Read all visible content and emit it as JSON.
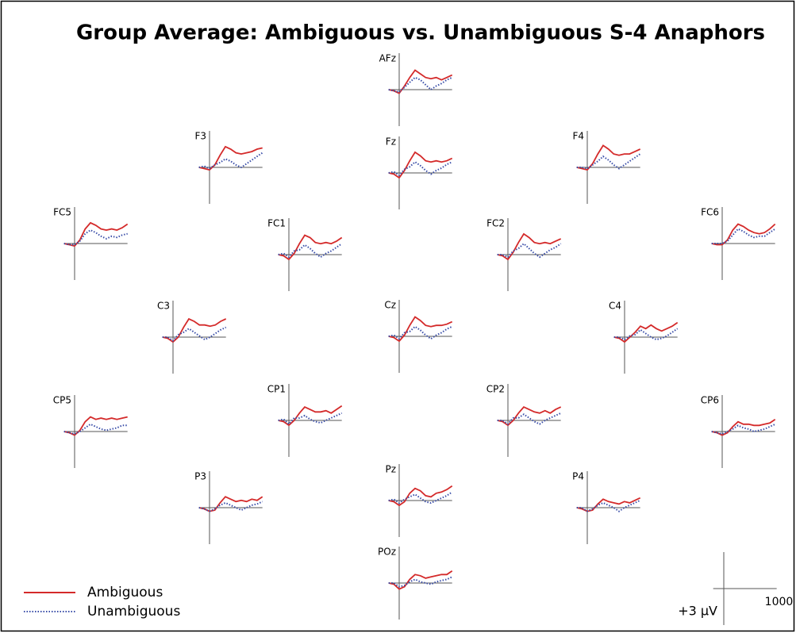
{
  "chart_data": {
    "type": "erp",
    "title": "Group Average: Ambiguous  vs. Unambiguous S-4 Anaphors",
    "x": [
      -200,
      -100,
      0,
      100,
      200,
      300,
      400,
      500,
      600,
      700,
      800,
      900,
      1000
    ],
    "xlim": [
      -200,
      1000
    ],
    "ylim": [
      -3,
      3
    ],
    "y_inverted": true,
    "series": [
      {
        "name": "Ambiguous",
        "color": "#d42a2a",
        "style": "solid"
      },
      {
        "name": "Unambiguous",
        "color": "#3a4ea8",
        "style": "dotted"
      }
    ],
    "panels": [
      {
        "label": "AFz",
        "series": [
          [
            0,
            0.1,
            0.3,
            -0.3,
            -1.0,
            -1.6,
            -1.3,
            -1.0,
            -0.9,
            -1.0,
            -0.8,
            -1.0,
            -1.2
          ],
          [
            0,
            0.1,
            0.2,
            -0.2,
            -0.6,
            -1.0,
            -0.8,
            -0.4,
            0.0,
            -0.3,
            -0.5,
            -0.8,
            -1.0
          ]
        ]
      },
      {
        "label": "F3",
        "series": [
          [
            0,
            0.1,
            0.2,
            -0.2,
            -1.0,
            -1.7,
            -1.5,
            -1.2,
            -1.1,
            -1.2,
            -1.3,
            -1.5,
            -1.6
          ],
          [
            0,
            -0.1,
            0.1,
            -0.2,
            -0.4,
            -0.7,
            -0.5,
            -0.2,
            0.0,
            -0.3,
            -0.6,
            -0.9,
            -1.2
          ]
        ]
      },
      {
        "label": "Fz",
        "series": [
          [
            0,
            0.1,
            0.4,
            -0.2,
            -1.0,
            -1.7,
            -1.4,
            -1.0,
            -0.9,
            -1.0,
            -0.9,
            -1.0,
            -1.2
          ],
          [
            0,
            -0.1,
            0.2,
            -0.3,
            -0.5,
            -0.9,
            -0.6,
            -0.2,
            0.1,
            -0.2,
            -0.4,
            -0.7,
            -0.9
          ]
        ]
      },
      {
        "label": "F4",
        "series": [
          [
            0,
            0.1,
            0.2,
            -0.3,
            -1.1,
            -1.8,
            -1.5,
            -1.1,
            -1.0,
            -1.1,
            -1.1,
            -1.3,
            -1.5
          ],
          [
            0,
            0.0,
            0.1,
            -0.2,
            -0.5,
            -0.9,
            -0.6,
            -0.2,
            0.1,
            -0.2,
            -0.5,
            -0.8,
            -1.1
          ]
        ]
      },
      {
        "label": "FC5",
        "series": [
          [
            0,
            0.1,
            0.2,
            -0.3,
            -1.2,
            -1.7,
            -1.5,
            -1.2,
            -1.1,
            -1.2,
            -1.1,
            -1.3,
            -1.6
          ],
          [
            0,
            0.1,
            0.1,
            -0.2,
            -0.8,
            -1.1,
            -0.9,
            -0.6,
            -0.4,
            -0.6,
            -0.5,
            -0.7,
            -0.8
          ]
        ]
      },
      {
        "label": "FC1",
        "series": [
          [
            0,
            0.1,
            0.4,
            -0.1,
            -0.9,
            -1.6,
            -1.4,
            -1.0,
            -0.9,
            -1.0,
            -0.9,
            -1.1,
            -1.4
          ],
          [
            0,
            -0.1,
            0.2,
            -0.3,
            -0.4,
            -0.8,
            -0.5,
            -0.1,
            0.2,
            -0.1,
            -0.3,
            -0.6,
            -0.9
          ]
        ]
      },
      {
        "label": "FC2",
        "series": [
          [
            0,
            0.1,
            0.4,
            -0.2,
            -1.0,
            -1.7,
            -1.4,
            -1.0,
            -0.9,
            -1.0,
            -0.9,
            -1.1,
            -1.3
          ],
          [
            0,
            0.0,
            0.2,
            -0.3,
            -0.5,
            -0.9,
            -0.5,
            -0.1,
            0.2,
            -0.1,
            -0.4,
            -0.6,
            -0.9
          ]
        ]
      },
      {
        "label": "FC6",
        "series": [
          [
            0,
            0.1,
            0.1,
            -0.3,
            -1.1,
            -1.6,
            -1.4,
            -1.1,
            -0.9,
            -0.8,
            -0.9,
            -1.2,
            -1.6
          ],
          [
            0,
            0.0,
            0.0,
            -0.2,
            -0.7,
            -1.2,
            -1.0,
            -0.7,
            -0.5,
            -0.6,
            -0.6,
            -0.9,
            -1.2
          ]
        ]
      },
      {
        "label": "C3",
        "series": [
          [
            0,
            0.1,
            0.4,
            0.0,
            -0.8,
            -1.5,
            -1.3,
            -1.0,
            -1.0,
            -0.9,
            -1.0,
            -1.3,
            -1.5
          ],
          [
            0,
            0.0,
            0.3,
            -0.2,
            -0.4,
            -0.7,
            -0.4,
            -0.1,
            0.2,
            0.0,
            -0.3,
            -0.6,
            -0.8
          ]
        ]
      },
      {
        "label": "Cz",
        "series": [
          [
            0,
            0.1,
            0.4,
            -0.1,
            -0.9,
            -1.6,
            -1.3,
            -0.9,
            -0.8,
            -0.9,
            -0.9,
            -1.0,
            -1.2
          ],
          [
            0,
            -0.1,
            0.2,
            -0.3,
            -0.4,
            -0.8,
            -0.5,
            -0.1,
            0.2,
            -0.1,
            -0.3,
            -0.6,
            -0.8
          ]
        ]
      },
      {
        "label": "C4",
        "series": [
          [
            0,
            0.1,
            0.4,
            0.0,
            -0.4,
            -0.9,
            -0.7,
            -1.0,
            -0.7,
            -0.5,
            -0.7,
            -0.9,
            -1.2
          ],
          [
            0,
            0.0,
            0.2,
            -0.1,
            -0.2,
            -0.6,
            -0.3,
            0.0,
            0.2,
            0.1,
            -0.1,
            -0.4,
            -0.7
          ]
        ]
      },
      {
        "label": "CP5",
        "series": [
          [
            0,
            0.1,
            0.3,
            -0.1,
            -0.8,
            -1.2,
            -1.0,
            -1.1,
            -1.0,
            -1.1,
            -1.0,
            -1.1,
            -1.2
          ],
          [
            0,
            0.1,
            0.2,
            0.0,
            -0.3,
            -0.6,
            -0.4,
            -0.2,
            -0.1,
            -0.2,
            -0.3,
            -0.5,
            -0.5
          ]
        ]
      },
      {
        "label": "CP1",
        "series": [
          [
            0,
            0.1,
            0.4,
            0.0,
            -0.6,
            -1.1,
            -0.9,
            -0.7,
            -0.7,
            -0.8,
            -0.6,
            -0.9,
            -1.2
          ],
          [
            0,
            -0.1,
            0.3,
            -0.2,
            -0.2,
            -0.4,
            -0.1,
            0.1,
            0.2,
            0.0,
            -0.2,
            -0.4,
            -0.6
          ]
        ]
      },
      {
        "label": "CP2",
        "series": [
          [
            0,
            0.1,
            0.4,
            0.0,
            -0.6,
            -1.1,
            -0.9,
            -0.7,
            -0.6,
            -0.8,
            -0.6,
            -0.9,
            -1.1
          ],
          [
            0,
            0.0,
            0.3,
            -0.2,
            -0.2,
            -0.5,
            -0.2,
            0.1,
            0.3,
            0.0,
            -0.2,
            -0.4,
            -0.6
          ]
        ]
      },
      {
        "label": "CP6",
        "series": [
          [
            0,
            0.1,
            0.3,
            0.1,
            -0.4,
            -0.8,
            -0.6,
            -0.6,
            -0.5,
            -0.5,
            -0.6,
            -0.7,
            -1.0
          ],
          [
            0,
            0.1,
            0.2,
            0.0,
            -0.2,
            -0.5,
            -0.3,
            -0.2,
            0.0,
            -0.1,
            -0.2,
            -0.4,
            -0.6
          ]
        ]
      },
      {
        "label": "P3",
        "series": [
          [
            0,
            0.1,
            0.3,
            0.2,
            -0.4,
            -0.9,
            -0.7,
            -0.5,
            -0.6,
            -0.5,
            -0.7,
            -0.6,
            -0.9
          ],
          [
            0,
            0.1,
            0.3,
            0.1,
            -0.2,
            -0.4,
            -0.2,
            0.0,
            0.2,
            0.0,
            -0.2,
            -0.3,
            -0.5
          ]
        ]
      },
      {
        "label": "Pz",
        "series": [
          [
            0,
            0.1,
            0.4,
            0.1,
            -0.6,
            -1.0,
            -0.8,
            -0.4,
            -0.3,
            -0.6,
            -0.7,
            -0.9,
            -1.2
          ],
          [
            0,
            -0.1,
            0.2,
            -0.1,
            -0.3,
            -0.5,
            -0.2,
            0.1,
            0.2,
            0.0,
            -0.2,
            -0.4,
            -0.7
          ]
        ]
      },
      {
        "label": "P4",
        "series": [
          [
            0,
            0.1,
            0.3,
            0.2,
            -0.3,
            -0.7,
            -0.5,
            -0.4,
            -0.3,
            -0.5,
            -0.4,
            -0.6,
            -0.8
          ],
          [
            0,
            0.0,
            0.3,
            0.1,
            -0.2,
            -0.4,
            -0.2,
            0.0,
            0.3,
            0.0,
            -0.2,
            -0.4,
            -0.6
          ]
        ]
      },
      {
        "label": "POz",
        "series": [
          [
            0,
            0.1,
            0.5,
            0.3,
            -0.3,
            -0.7,
            -0.6,
            -0.4,
            -0.5,
            -0.6,
            -0.7,
            -0.7,
            -1.0
          ],
          [
            0,
            0.0,
            0.3,
            0.2,
            -0.1,
            -0.3,
            -0.1,
            0.0,
            0.1,
            -0.1,
            -0.2,
            -0.3,
            -0.5
          ]
        ]
      }
    ],
    "scale": {
      "xtick": 1000,
      "ytick": {
        "value": 3,
        "label": "+3 µV"
      }
    }
  }
}
